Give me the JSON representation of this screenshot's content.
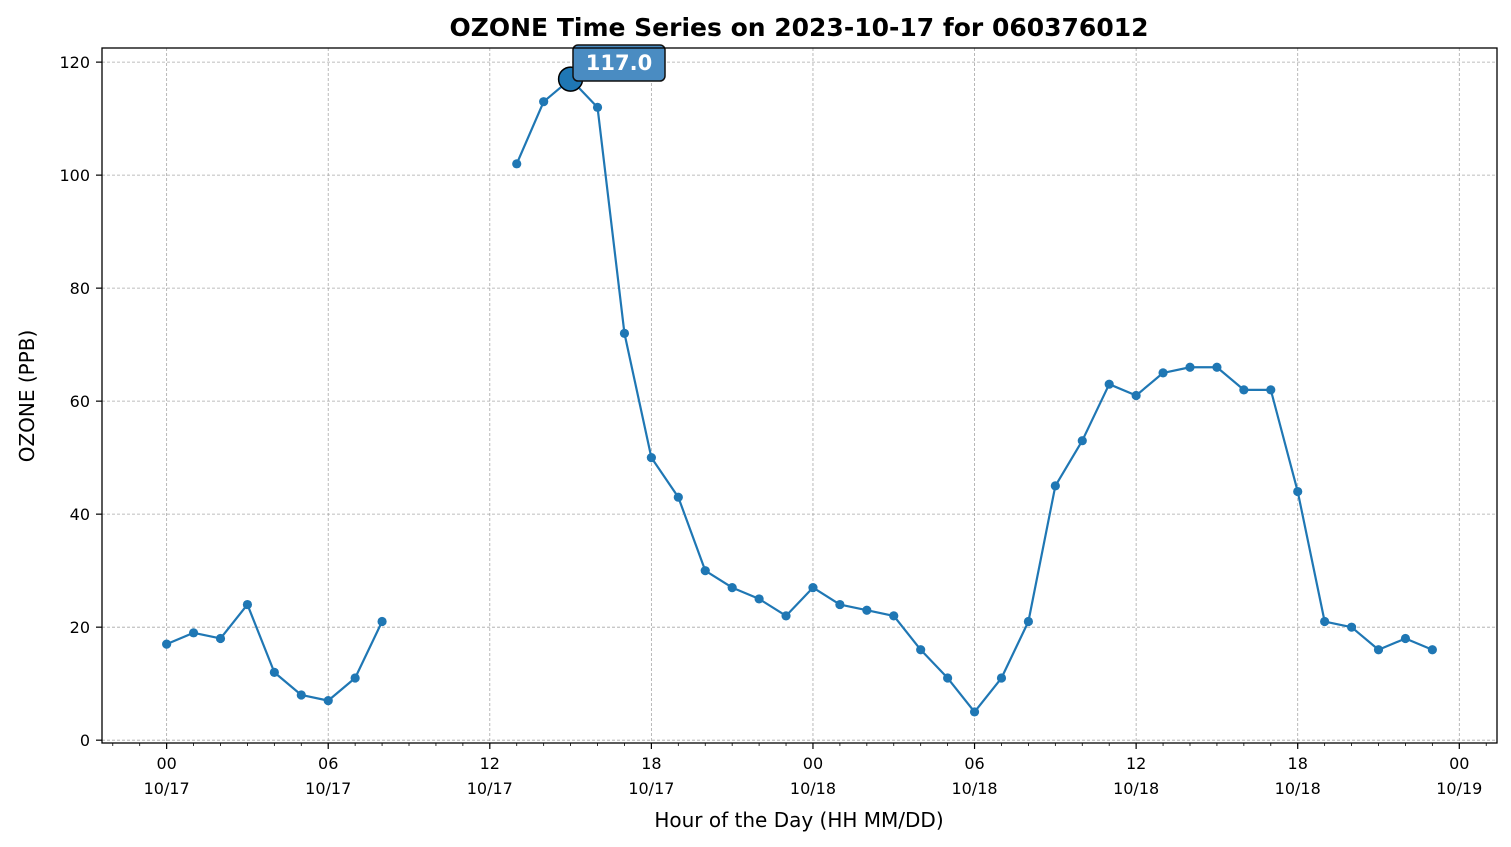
{
  "chart_data": {
    "type": "line",
    "title": "OZONE Time Series on 2023-10-17 for 060376012",
    "xlabel": "Hour of the Day (HH MM/DD)",
    "ylabel": "OZONE (PPB)",
    "ylim": [
      -0.5,
      122.5
    ],
    "yticks": [
      0,
      20,
      40,
      60,
      80,
      100,
      120
    ],
    "xlim": [
      "2023-10-16 21:36",
      "2023-10-19 01:24"
    ],
    "xticks": [
      {
        "hh": "00",
        "md": "10/17",
        "t": "2023-10-17 00:00"
      },
      {
        "hh": "06",
        "md": "10/17",
        "t": "2023-10-17 06:00"
      },
      {
        "hh": "12",
        "md": "10/17",
        "t": "2023-10-17 12:00"
      },
      {
        "hh": "18",
        "md": "10/17",
        "t": "2023-10-17 18:00"
      },
      {
        "hh": "00",
        "md": "10/18",
        "t": "2023-10-18 00:00"
      },
      {
        "hh": "06",
        "md": "10/18",
        "t": "2023-10-18 06:00"
      },
      {
        "hh": "12",
        "md": "10/18",
        "t": "2023-10-18 12:00"
      },
      {
        "hh": "18",
        "md": "10/18",
        "t": "2023-10-18 18:00"
      },
      {
        "hh": "00",
        "md": "10/19",
        "t": "2023-10-19 00:00"
      }
    ],
    "grid": true,
    "series_color": "#1f77b4",
    "annotation": {
      "text": "117.0",
      "x": "2023-10-17 15:00",
      "y": 117.0,
      "box_color": "#4a8cc2"
    },
    "series": [
      {
        "x": [
          "2023-10-17 00:00",
          "2023-10-17 01:00",
          "2023-10-17 02:00",
          "2023-10-17 03:00",
          "2023-10-17 04:00",
          "2023-10-17 05:00",
          "2023-10-17 06:00",
          "2023-10-17 07:00",
          "2023-10-17 08:00",
          "2023-10-17 09:00",
          "2023-10-17 10:00",
          "2023-10-17 11:00",
          "2023-10-17 12:00",
          "2023-10-17 13:00",
          "2023-10-17 14:00",
          "2023-10-17 15:00",
          "2023-10-17 16:00",
          "2023-10-17 17:00",
          "2023-10-17 18:00",
          "2023-10-17 19:00",
          "2023-10-17 20:00",
          "2023-10-17 21:00",
          "2023-10-17 22:00",
          "2023-10-17 23:00",
          "2023-10-18 00:00",
          "2023-10-18 01:00",
          "2023-10-18 02:00",
          "2023-10-18 03:00",
          "2023-10-18 04:00",
          "2023-10-18 05:00",
          "2023-10-18 06:00",
          "2023-10-18 07:00",
          "2023-10-18 08:00",
          "2023-10-18 09:00",
          "2023-10-18 10:00",
          "2023-10-18 11:00",
          "2023-10-18 12:00",
          "2023-10-18 13:00",
          "2023-10-18 14:00",
          "2023-10-18 15:00",
          "2023-10-18 16:00",
          "2023-10-18 17:00",
          "2023-10-18 18:00",
          "2023-10-18 19:00",
          "2023-10-18 20:00",
          "2023-10-18 21:00",
          "2023-10-18 22:00",
          "2023-10-18 23:00"
        ],
        "values": [
          17,
          19,
          18,
          24,
          12,
          8,
          7,
          11,
          21,
          null,
          null,
          null,
          null,
          102,
          113,
          117,
          112,
          72,
          50,
          43,
          30,
          27,
          25,
          22,
          27,
          24,
          23,
          22,
          16,
          11,
          5,
          11,
          21,
          45,
          53,
          63,
          61,
          65,
          66,
          66,
          62,
          62,
          44,
          21,
          20,
          16,
          18,
          16
        ]
      }
    ]
  }
}
